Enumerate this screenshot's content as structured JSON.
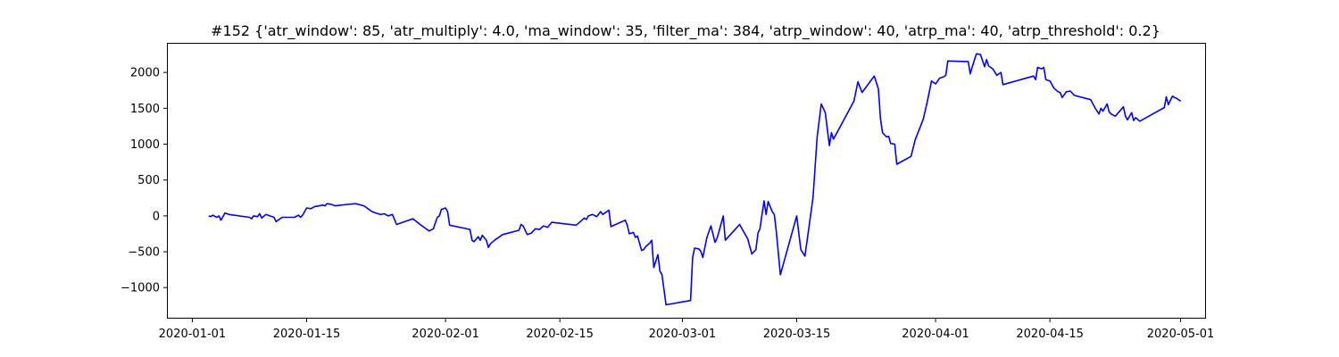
{
  "chart_data": {
    "type": "line",
    "title": "#152 {'atr_window': 85, 'atr_multiply': 4.0, 'ma_window': 35, 'filter_ma': 384, 'atrp_window': 40, 'atrp_ma': 40, 'atrp_threshold': 0.2}",
    "xlabel": "",
    "ylabel": "",
    "xlim": [
      "2019-12-29",
      "2020-05-04"
    ],
    "ylim": [
      -1420,
      2400
    ],
    "x_ticks": [
      "2020-01-01",
      "2020-01-15",
      "2020-02-01",
      "2020-02-15",
      "2020-03-01",
      "2020-03-15",
      "2020-04-01",
      "2020-04-15",
      "2020-05-01"
    ],
    "y_ticks": [
      -1000,
      -500,
      0,
      500,
      1000,
      1500,
      2000
    ],
    "grid": false,
    "legend": "none",
    "colors": {
      "line": "#0000ff"
    },
    "series": [
      {
        "points": [
          [
            "2020-01-03",
            0
          ],
          [
            "2020-01-03T06",
            -10
          ],
          [
            "2020-01-03T12",
            10
          ],
          [
            "2020-01-04",
            -20
          ],
          [
            "2020-01-04T06",
            0
          ],
          [
            "2020-01-04T12",
            -60
          ],
          [
            "2020-01-05",
            40
          ],
          [
            "2020-01-05T12",
            20
          ],
          [
            "2020-01-08",
            -20
          ],
          [
            "2020-01-08T06",
            -40
          ],
          [
            "2020-01-08T12",
            0
          ],
          [
            "2020-01-09",
            -10
          ],
          [
            "2020-01-09T06",
            30
          ],
          [
            "2020-01-09T12",
            -30
          ],
          [
            "2020-01-10",
            20
          ],
          [
            "2020-01-10T12",
            0
          ],
          [
            "2020-01-11",
            -20
          ],
          [
            "2020-01-11T06",
            -80
          ],
          [
            "2020-01-11T12",
            -60
          ],
          [
            "2020-01-12",
            -20
          ],
          [
            "2020-01-13T12",
            -20
          ],
          [
            "2020-01-14",
            10
          ],
          [
            "2020-01-14T06",
            -20
          ],
          [
            "2020-01-14T12",
            10
          ],
          [
            "2020-01-15",
            110
          ],
          [
            "2020-01-15T12",
            100
          ],
          [
            "2020-01-16",
            130
          ],
          [
            "2020-01-17",
            150
          ],
          [
            "2020-01-17T06",
            140
          ],
          [
            "2020-01-17T12",
            170
          ],
          [
            "2020-01-18",
            160
          ],
          [
            "2020-01-18T12",
            140
          ],
          [
            "2020-01-20",
            160
          ],
          [
            "2020-01-21",
            170
          ],
          [
            "2020-01-22",
            140
          ],
          [
            "2020-01-22T12",
            100
          ],
          [
            "2020-01-23",
            60
          ],
          [
            "2020-01-23T12",
            40
          ],
          [
            "2020-01-24",
            20
          ],
          [
            "2020-01-24T12",
            30
          ],
          [
            "2020-01-25",
            0
          ],
          [
            "2020-01-25T12",
            20
          ],
          [
            "2020-01-26",
            -120
          ],
          [
            "2020-01-28",
            -40
          ],
          [
            "2020-01-29",
            -130
          ],
          [
            "2020-01-29T12",
            -170
          ],
          [
            "2020-01-30",
            -210
          ],
          [
            "2020-01-30T12",
            -180
          ],
          [
            "2020-01-31",
            -20
          ],
          [
            "2020-01-31T06",
            0
          ],
          [
            "2020-01-31T12",
            90
          ],
          [
            "2020-02-01",
            110
          ],
          [
            "2020-02-01T06",
            60
          ],
          [
            "2020-02-01T12",
            -130
          ],
          [
            "2020-02-04",
            -190
          ],
          [
            "2020-02-04T06",
            -340
          ],
          [
            "2020-02-04T12",
            -360
          ],
          [
            "2020-02-05",
            -290
          ],
          [
            "2020-02-05T06",
            -340
          ],
          [
            "2020-02-05T12",
            -270
          ],
          [
            "2020-02-06",
            -340
          ],
          [
            "2020-02-06T06",
            -440
          ],
          [
            "2020-02-06T12",
            -390
          ],
          [
            "2020-02-07",
            -340
          ],
          [
            "2020-02-08",
            -260
          ],
          [
            "2020-02-10",
            -200
          ],
          [
            "2020-02-10T06",
            -120
          ],
          [
            "2020-02-10T12",
            -140
          ],
          [
            "2020-02-11",
            -260
          ],
          [
            "2020-02-11T12",
            -240
          ],
          [
            "2020-02-12",
            -180
          ],
          [
            "2020-02-12T12",
            -190
          ],
          [
            "2020-02-13",
            -140
          ],
          [
            "2020-02-13T12",
            -160
          ],
          [
            "2020-02-14",
            -90
          ],
          [
            "2020-02-17",
            -130
          ],
          [
            "2020-02-18",
            -30
          ],
          [
            "2020-02-18T06",
            -50
          ],
          [
            "2020-02-18T12",
            0
          ],
          [
            "2020-02-19",
            20
          ],
          [
            "2020-02-19T12",
            -10
          ],
          [
            "2020-02-20",
            60
          ],
          [
            "2020-02-20T06",
            20
          ],
          [
            "2020-02-20T12",
            40
          ],
          [
            "2020-02-21",
            80
          ],
          [
            "2020-02-21T06",
            -150
          ],
          [
            "2020-02-23",
            -60
          ],
          [
            "2020-02-23T06",
            -130
          ],
          [
            "2020-02-23T12",
            -250
          ],
          [
            "2020-02-24",
            -230
          ],
          [
            "2020-02-24T06",
            -300
          ],
          [
            "2020-02-24T12",
            -280
          ],
          [
            "2020-02-25",
            -480
          ],
          [
            "2020-02-25T06",
            -470
          ],
          [
            "2020-02-25T12",
            -430
          ],
          [
            "2020-02-26",
            -380
          ],
          [
            "2020-02-26T06",
            -340
          ],
          [
            "2020-02-26T12",
            -720
          ],
          [
            "2020-02-27",
            -540
          ],
          [
            "2020-02-27T06",
            -770
          ],
          [
            "2020-02-27T12",
            -820
          ],
          [
            "2020-02-28",
            -1240
          ],
          [
            "2020-03-02",
            -1180
          ],
          [
            "2020-03-02T06",
            -580
          ],
          [
            "2020-03-02T12",
            -450
          ],
          [
            "2020-03-03",
            -460
          ],
          [
            "2020-03-03T06",
            -490
          ],
          [
            "2020-03-03T12",
            -580
          ],
          [
            "2020-03-04",
            -300
          ],
          [
            "2020-03-04T12",
            -140
          ],
          [
            "2020-03-05",
            -370
          ],
          [
            "2020-03-05T06",
            -310
          ],
          [
            "2020-03-05T12",
            -210
          ],
          [
            "2020-03-06",
            0
          ],
          [
            "2020-03-06T06",
            -340
          ],
          [
            "2020-03-08",
            -120
          ],
          [
            "2020-03-09",
            -320
          ],
          [
            "2020-03-09T12",
            -530
          ],
          [
            "2020-03-10",
            -470
          ],
          [
            "2020-03-10T06",
            -240
          ],
          [
            "2020-03-10T12",
            -180
          ],
          [
            "2020-03-11",
            210
          ],
          [
            "2020-03-11T06",
            20
          ],
          [
            "2020-03-11T12",
            200
          ],
          [
            "2020-03-12",
            60
          ],
          [
            "2020-03-12T06",
            20
          ],
          [
            "2020-03-12T12",
            -210
          ],
          [
            "2020-03-13",
            -820
          ],
          [
            "2020-03-15",
            0
          ],
          [
            "2020-03-15T12",
            -470
          ],
          [
            "2020-03-16",
            -560
          ],
          [
            "2020-03-16T06",
            -360
          ],
          [
            "2020-03-17",
            260
          ],
          [
            "2020-03-17T12",
            1100
          ],
          [
            "2020-03-18",
            1560
          ],
          [
            "2020-03-18T12",
            1440
          ],
          [
            "2020-03-19",
            980
          ],
          [
            "2020-03-19T06",
            1160
          ],
          [
            "2020-03-19T12",
            1070
          ],
          [
            "2020-03-22",
            1600
          ],
          [
            "2020-03-22T12",
            1870
          ],
          [
            "2020-03-23",
            1720
          ],
          [
            "2020-03-24T12",
            1950
          ],
          [
            "2020-03-25",
            1770
          ],
          [
            "2020-03-25T06",
            1360
          ],
          [
            "2020-03-25T12",
            1160
          ],
          [
            "2020-03-26",
            1100
          ],
          [
            "2020-03-26T06",
            1110
          ],
          [
            "2020-03-26T12",
            1010
          ],
          [
            "2020-03-27",
            1000
          ],
          [
            "2020-03-27T06",
            720
          ],
          [
            "2020-03-29",
            830
          ],
          [
            "2020-03-29T12",
            1060
          ],
          [
            "2020-03-30T12",
            1350
          ],
          [
            "2020-03-31",
            1600
          ],
          [
            "2020-03-31T12",
            1880
          ],
          [
            "2020-04-01",
            1840
          ],
          [
            "2020-04-01T12",
            1920
          ],
          [
            "2020-04-02",
            1940
          ],
          [
            "2020-04-02T06",
            1960
          ],
          [
            "2020-04-02T12",
            2160
          ],
          [
            "2020-04-05",
            2150
          ],
          [
            "2020-04-05T06",
            1980
          ],
          [
            "2020-04-05T12",
            2080
          ],
          [
            "2020-04-06",
            2260
          ],
          [
            "2020-04-06T12",
            2250
          ],
          [
            "2020-04-07",
            2080
          ],
          [
            "2020-04-07T06",
            2180
          ],
          [
            "2020-04-07T12",
            2090
          ],
          [
            "2020-04-08",
            2050
          ],
          [
            "2020-04-08T12",
            1960
          ],
          [
            "2020-04-09",
            2000
          ],
          [
            "2020-04-09T06",
            1830
          ],
          [
            "2020-04-13",
            1950
          ],
          [
            "2020-04-13T06",
            1900
          ],
          [
            "2020-04-13T12",
            2070
          ],
          [
            "2020-04-14",
            2050
          ],
          [
            "2020-04-14T06",
            2070
          ],
          [
            "2020-04-14T12",
            1900
          ],
          [
            "2020-04-15",
            1880
          ],
          [
            "2020-04-15T12",
            1780
          ],
          [
            "2020-04-16",
            1730
          ],
          [
            "2020-04-16T06",
            1720
          ],
          [
            "2020-04-16T12",
            1650
          ],
          [
            "2020-04-17",
            1730
          ],
          [
            "2020-04-17T12",
            1740
          ],
          [
            "2020-04-18",
            1680
          ],
          [
            "2020-04-20",
            1620
          ],
          [
            "2020-04-20T12",
            1510
          ],
          [
            "2020-04-21",
            1420
          ],
          [
            "2020-04-21T06",
            1500
          ],
          [
            "2020-04-21T12",
            1460
          ],
          [
            "2020-04-22",
            1560
          ],
          [
            "2020-04-22T06",
            1450
          ],
          [
            "2020-04-22T12",
            1420
          ],
          [
            "2020-04-23",
            1390
          ],
          [
            "2020-04-24",
            1520
          ],
          [
            "2020-04-24T06",
            1390
          ],
          [
            "2020-04-24T12",
            1340
          ],
          [
            "2020-04-25",
            1440
          ],
          [
            "2020-04-25T06",
            1330
          ],
          [
            "2020-04-25T12",
            1370
          ],
          [
            "2020-04-26",
            1320
          ],
          [
            "2020-04-29",
            1510
          ],
          [
            "2020-04-29T06",
            1660
          ],
          [
            "2020-04-29T12",
            1550
          ],
          [
            "2020-04-30",
            1670
          ],
          [
            "2020-04-30T06",
            1650
          ],
          [
            "2020-04-30T12",
            1640
          ],
          [
            "2020-05-01",
            1600
          ]
        ]
      }
    ]
  }
}
